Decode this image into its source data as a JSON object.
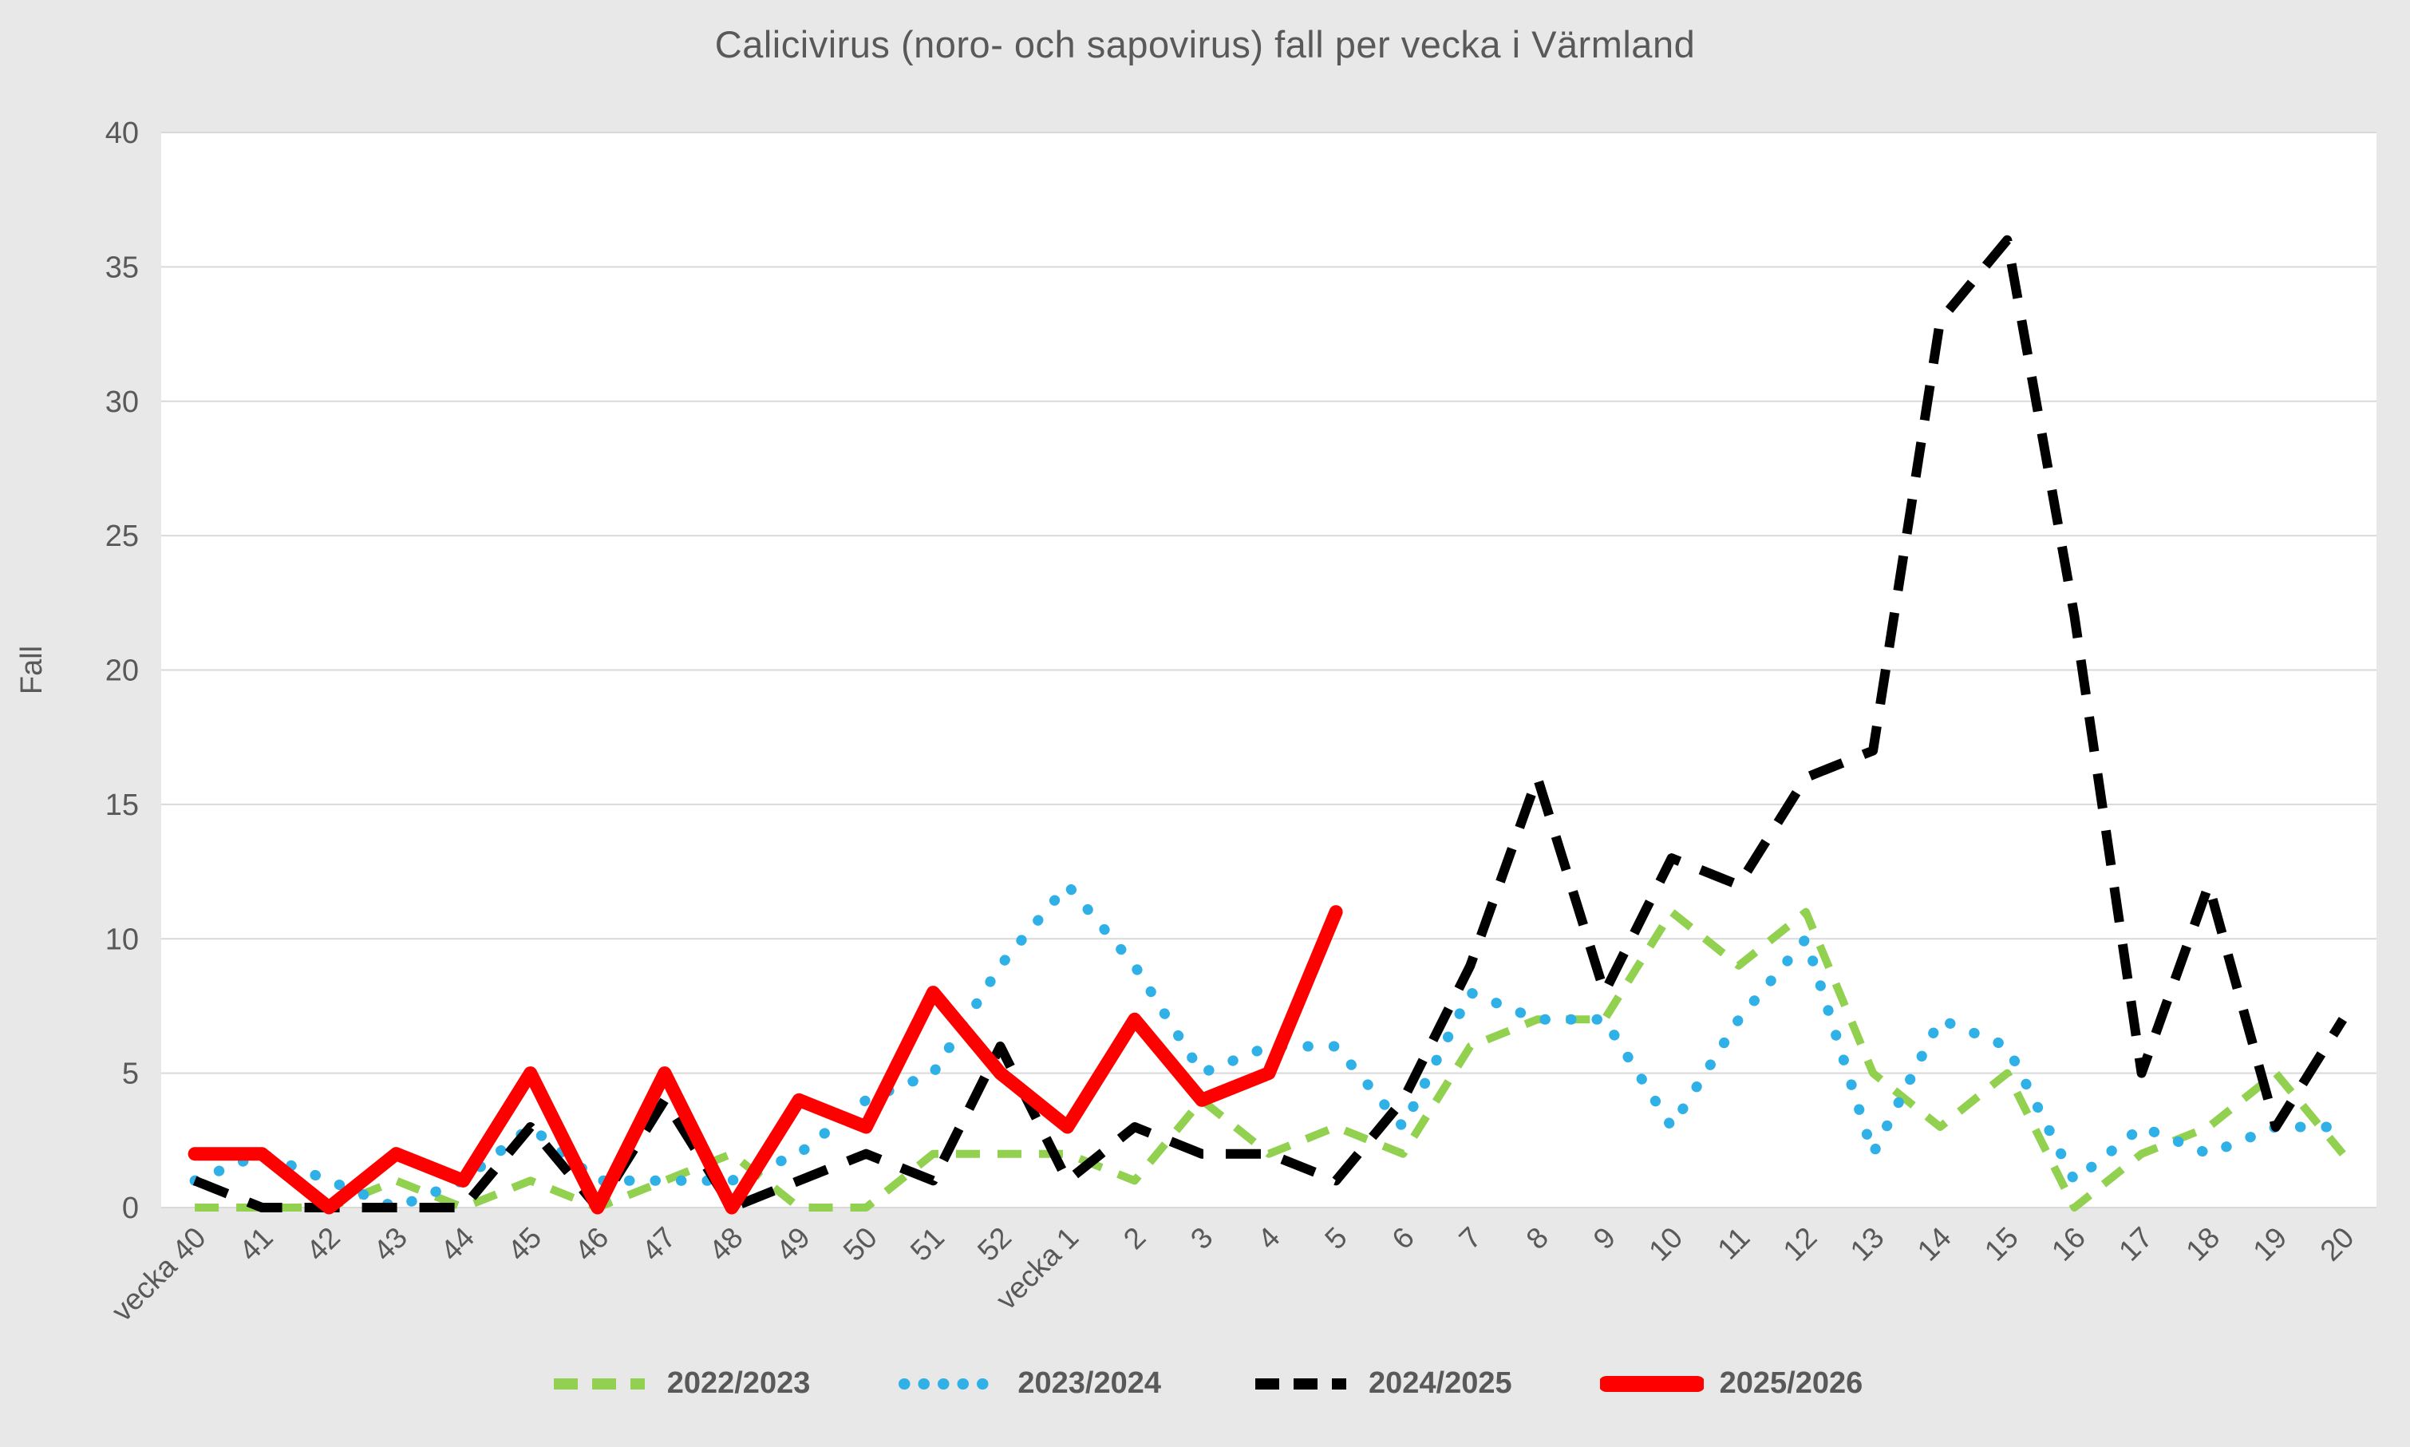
{
  "title": "Calicivirus (noro- och sapovirus) fall per vecka i Värmland",
  "colors": {
    "background": "#e8e8e8",
    "plot_background": "#ffffff",
    "gridline": "#d9d9d9",
    "text": "#595959",
    "series_2022_2023": "#92d050",
    "series_2023_2024": "#2fb0e6",
    "series_2024_2025": "#000000",
    "series_2025_2026": "#ff0000"
  },
  "chart_data": {
    "type": "line",
    "title": "Calicivirus (noro- och sapovirus) fall per vecka i Värmland",
    "xlabel": "",
    "ylabel": "Fall",
    "ylim": [
      0,
      40
    ],
    "ytick_step": 5,
    "yticks": [
      0,
      5,
      10,
      15,
      20,
      25,
      30,
      35,
      40
    ],
    "grid": true,
    "legend_position": "bottom",
    "categories": [
      "vecka 40",
      "41",
      "42",
      "43",
      "44",
      "45",
      "46",
      "47",
      "48",
      "49",
      "50",
      "51",
      "52",
      "vecka 1",
      "2",
      "3",
      "4",
      "5",
      "6",
      "7",
      "8",
      "9",
      "10",
      "11",
      "12",
      "13",
      "14",
      "15",
      "16",
      "17",
      "18",
      "19",
      "20"
    ],
    "series": [
      {
        "name": "2022/2023",
        "color": "#92d050",
        "style": "dashed",
        "values": [
          0,
          0,
          0,
          1,
          0,
          1,
          0,
          1,
          2,
          0,
          0,
          2,
          2,
          2,
          1,
          4,
          2,
          3,
          2,
          6,
          7,
          7,
          11,
          9,
          11,
          5,
          3,
          5,
          0,
          2,
          3,
          5,
          2
        ]
      },
      {
        "name": "2023/2024",
        "color": "#2fb0e6",
        "style": "dotted",
        "values": [
          1,
          2,
          1,
          0,
          1,
          3,
          1,
          1,
          1,
          2,
          4,
          5,
          9,
          12,
          9,
          5,
          6,
          6,
          3,
          8,
          7,
          7,
          3,
          7,
          10,
          2,
          7,
          6,
          1,
          3,
          2,
          3,
          3
        ]
      },
      {
        "name": "2024/2025",
        "color": "#000000",
        "style": "long-dashed",
        "values": [
          1,
          0,
          0,
          0,
          0,
          3,
          0,
          4,
          0,
          1,
          2,
          1,
          6,
          1,
          3,
          2,
          2,
          1,
          4,
          9,
          16,
          8,
          13,
          12,
          16,
          17,
          33,
          36,
          22,
          5,
          12,
          3,
          7
        ]
      },
      {
        "name": "2025/2026",
        "color": "#ff0000",
        "style": "solid",
        "values": [
          2,
          2,
          0,
          2,
          1,
          5,
          0,
          5,
          0,
          4,
          3,
          8,
          5,
          3,
          7,
          4,
          5,
          11,
          null,
          null,
          null,
          null,
          null,
          null,
          null,
          null,
          null,
          null,
          null,
          null,
          null,
          null,
          null
        ]
      }
    ]
  }
}
